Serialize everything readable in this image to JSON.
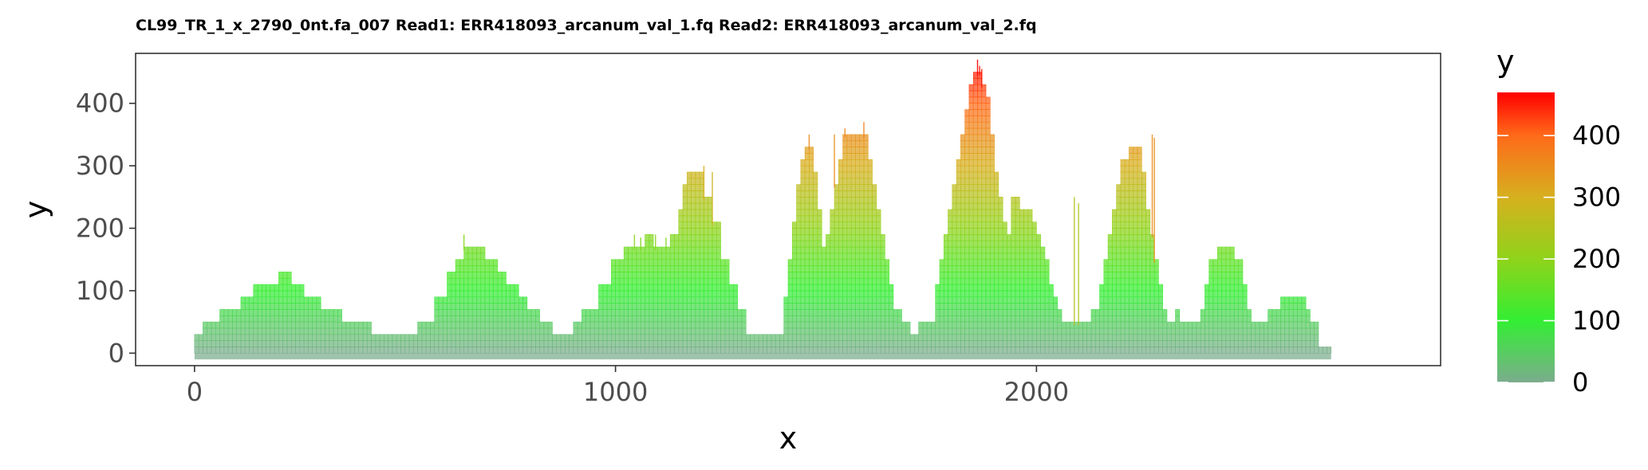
{
  "chart_data": {
    "type": "bar",
    "title": "CL99_TR_1_x_2790_0nt.fa_007 Read1: ERR418093_arcanum_val_1.fq Read2: ERR418093_arcanum_val_2.fq",
    "xlabel": "x",
    "ylabel": "y",
    "xlim": [
      -140,
      2960
    ],
    "ylim": [
      -20,
      480
    ],
    "x_ticks": [
      0,
      1000,
      2000
    ],
    "y_ticks": [
      0,
      100,
      200,
      300,
      400
    ],
    "bin_width": 10,
    "layer_step": 10,
    "grid": false,
    "profile": [
      [
        0,
        30
      ],
      [
        20,
        30
      ],
      [
        20,
        50
      ],
      [
        60,
        50
      ],
      [
        60,
        70
      ],
      [
        110,
        70
      ],
      [
        110,
        90
      ],
      [
        140,
        90
      ],
      [
        140,
        110
      ],
      [
        200,
        110
      ],
      [
        200,
        130
      ],
      [
        230,
        130
      ],
      [
        230,
        110
      ],
      [
        260,
        110
      ],
      [
        260,
        90
      ],
      [
        300,
        90
      ],
      [
        300,
        70
      ],
      [
        350,
        70
      ],
      [
        350,
        50
      ],
      [
        420,
        50
      ],
      [
        420,
        30
      ],
      [
        530,
        30
      ],
      [
        530,
        50
      ],
      [
        570,
        50
      ],
      [
        570,
        90
      ],
      [
        600,
        90
      ],
      [
        600,
        130
      ],
      [
        620,
        130
      ],
      [
        620,
        150
      ],
      [
        640,
        150
      ],
      [
        640,
        170
      ],
      [
        690,
        170
      ],
      [
        690,
        150
      ],
      [
        720,
        150
      ],
      [
        720,
        130
      ],
      [
        740,
        130
      ],
      [
        740,
        110
      ],
      [
        770,
        110
      ],
      [
        770,
        90
      ],
      [
        790,
        90
      ],
      [
        790,
        70
      ],
      [
        820,
        70
      ],
      [
        820,
        50
      ],
      [
        850,
        50
      ],
      [
        850,
        30
      ],
      [
        900,
        30
      ],
      [
        900,
        50
      ],
      [
        920,
        50
      ],
      [
        920,
        70
      ],
      [
        960,
        70
      ],
      [
        960,
        110
      ],
      [
        990,
        110
      ],
      [
        990,
        150
      ],
      [
        1020,
        150
      ],
      [
        1020,
        170
      ],
      [
        1070,
        170
      ],
      [
        1070,
        190
      ],
      [
        1090,
        190
      ],
      [
        1090,
        170
      ],
      [
        1130,
        170
      ],
      [
        1130,
        190
      ],
      [
        1150,
        190
      ],
      [
        1150,
        230
      ],
      [
        1160,
        230
      ],
      [
        1160,
        270
      ],
      [
        1170,
        270
      ],
      [
        1170,
        290
      ],
      [
        1210,
        290
      ],
      [
        1210,
        250
      ],
      [
        1230,
        250
      ],
      [
        1230,
        210
      ],
      [
        1250,
        210
      ],
      [
        1250,
        150
      ],
      [
        1270,
        150
      ],
      [
        1270,
        110
      ],
      [
        1290,
        110
      ],
      [
        1290,
        70
      ],
      [
        1310,
        70
      ],
      [
        1310,
        30
      ],
      [
        1400,
        30
      ],
      [
        1400,
        90
      ],
      [
        1410,
        90
      ],
      [
        1410,
        150
      ],
      [
        1420,
        150
      ],
      [
        1420,
        210
      ],
      [
        1430,
        210
      ],
      [
        1430,
        270
      ],
      [
        1440,
        270
      ],
      [
        1440,
        310
      ],
      [
        1450,
        310
      ],
      [
        1450,
        330
      ],
      [
        1470,
        330
      ],
      [
        1470,
        290
      ],
      [
        1480,
        290
      ],
      [
        1480,
        230
      ],
      [
        1490,
        230
      ],
      [
        1490,
        170
      ],
      [
        1500,
        170
      ],
      [
        1500,
        190
      ],
      [
        1510,
        190
      ],
      [
        1510,
        230
      ],
      [
        1520,
        230
      ],
      [
        1520,
        270
      ],
      [
        1530,
        270
      ],
      [
        1530,
        310
      ],
      [
        1540,
        310
      ],
      [
        1540,
        350
      ],
      [
        1600,
        350
      ],
      [
        1600,
        310
      ],
      [
        1610,
        310
      ],
      [
        1610,
        270
      ],
      [
        1620,
        270
      ],
      [
        1620,
        230
      ],
      [
        1630,
        230
      ],
      [
        1630,
        190
      ],
      [
        1640,
        190
      ],
      [
        1640,
        150
      ],
      [
        1650,
        150
      ],
      [
        1650,
        110
      ],
      [
        1660,
        110
      ],
      [
        1660,
        70
      ],
      [
        1680,
        70
      ],
      [
        1680,
        50
      ],
      [
        1700,
        50
      ],
      [
        1700,
        30
      ],
      [
        1720,
        30
      ],
      [
        1720,
        50
      ],
      [
        1760,
        50
      ],
      [
        1760,
        110
      ],
      [
        1770,
        110
      ],
      [
        1770,
        150
      ],
      [
        1780,
        150
      ],
      [
        1780,
        190
      ],
      [
        1790,
        190
      ],
      [
        1790,
        230
      ],
      [
        1800,
        230
      ],
      [
        1800,
        270
      ],
      [
        1810,
        270
      ],
      [
        1810,
        310
      ],
      [
        1820,
        310
      ],
      [
        1820,
        350
      ],
      [
        1830,
        350
      ],
      [
        1830,
        390
      ],
      [
        1840,
        390
      ],
      [
        1840,
        430
      ],
      [
        1850,
        430
      ],
      [
        1850,
        450
      ],
      [
        1870,
        450
      ],
      [
        1870,
        430
      ],
      [
        1880,
        430
      ],
      [
        1880,
        410
      ],
      [
        1890,
        410
      ],
      [
        1890,
        350
      ],
      [
        1900,
        350
      ],
      [
        1900,
        290
      ],
      [
        1910,
        290
      ],
      [
        1910,
        250
      ],
      [
        1920,
        250
      ],
      [
        1920,
        210
      ],
      [
        1930,
        210
      ],
      [
        1930,
        190
      ],
      [
        1940,
        190
      ],
      [
        1940,
        250
      ],
      [
        1960,
        250
      ],
      [
        1960,
        230
      ],
      [
        1990,
        230
      ],
      [
        1990,
        210
      ],
      [
        2000,
        210
      ],
      [
        2000,
        190
      ],
      [
        2010,
        190
      ],
      [
        2010,
        170
      ],
      [
        2020,
        170
      ],
      [
        2020,
        150
      ],
      [
        2030,
        150
      ],
      [
        2030,
        110
      ],
      [
        2040,
        110
      ],
      [
        2040,
        90
      ],
      [
        2050,
        90
      ],
      [
        2050,
        70
      ],
      [
        2060,
        70
      ],
      [
        2060,
        50
      ],
      [
        2130,
        50
      ],
      [
        2130,
        70
      ],
      [
        2150,
        70
      ],
      [
        2150,
        110
      ],
      [
        2160,
        110
      ],
      [
        2160,
        150
      ],
      [
        2170,
        150
      ],
      [
        2170,
        190
      ],
      [
        2180,
        190
      ],
      [
        2180,
        230
      ],
      [
        2190,
        230
      ],
      [
        2190,
        270
      ],
      [
        2200,
        270
      ],
      [
        2200,
        310
      ],
      [
        2220,
        310
      ],
      [
        2220,
        330
      ],
      [
        2250,
        330
      ],
      [
        2250,
        290
      ],
      [
        2260,
        290
      ],
      [
        2260,
        230
      ],
      [
        2270,
        230
      ],
      [
        2270,
        190
      ],
      [
        2280,
        190
      ],
      [
        2280,
        150
      ],
      [
        2290,
        150
      ],
      [
        2290,
        110
      ],
      [
        2300,
        110
      ],
      [
        2300,
        70
      ],
      [
        2310,
        70
      ],
      [
        2310,
        50
      ],
      [
        2330,
        50
      ],
      [
        2330,
        70
      ],
      [
        2340,
        70
      ],
      [
        2340,
        50
      ],
      [
        2390,
        50
      ],
      [
        2390,
        70
      ],
      [
        2400,
        70
      ],
      [
        2400,
        110
      ],
      [
        2410,
        110
      ],
      [
        2410,
        150
      ],
      [
        2430,
        150
      ],
      [
        2430,
        170
      ],
      [
        2470,
        170
      ],
      [
        2470,
        150
      ],
      [
        2490,
        150
      ],
      [
        2490,
        110
      ],
      [
        2500,
        110
      ],
      [
        2500,
        70
      ],
      [
        2510,
        70
      ],
      [
        2510,
        50
      ],
      [
        2550,
        50
      ],
      [
        2550,
        70
      ],
      [
        2580,
        70
      ],
      [
        2580,
        90
      ],
      [
        2640,
        90
      ],
      [
        2640,
        70
      ],
      [
        2650,
        70
      ],
      [
        2650,
        50
      ],
      [
        2670,
        50
      ],
      [
        2670,
        10
      ],
      [
        2700,
        10
      ]
    ],
    "spikes": [
      [
        1860,
        470
      ],
      [
        1865,
        460
      ],
      [
        1870,
        455
      ],
      [
        1590,
        370
      ],
      [
        1520,
        350
      ],
      [
        1545,
        360
      ],
      [
        2275,
        350
      ],
      [
        2280,
        345
      ],
      [
        1230,
        290
      ],
      [
        1210,
        300
      ],
      [
        640,
        190
      ],
      [
        1045,
        190
      ],
      [
        1060,
        185
      ],
      [
        1095,
        190
      ],
      [
        1120,
        185
      ],
      [
        1460,
        350
      ],
      [
        2090,
        250
      ],
      [
        2100,
        240
      ]
    ],
    "colorbar": {
      "title": "y",
      "breaks": [
        0,
        100,
        200,
        300,
        400
      ],
      "limits": [
        0,
        470
      ],
      "stops": [
        {
          "value": 0,
          "color": "#7bac8d"
        },
        {
          "value": 100,
          "color": "#33ee33"
        },
        {
          "value": 200,
          "color": "#90d31a"
        },
        {
          "value": 300,
          "color": "#d6b01f"
        },
        {
          "value": 400,
          "color": "#ff6a1a"
        },
        {
          "value": 470,
          "color": "#ff0000"
        }
      ]
    }
  }
}
